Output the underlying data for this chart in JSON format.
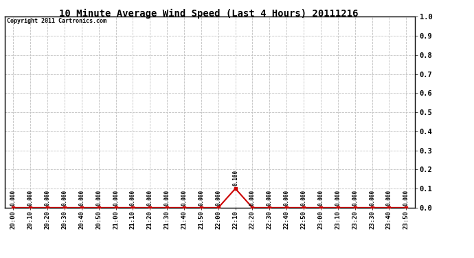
{
  "title": "10 Minute Average Wind Speed (Last 4 Hours) 20111216",
  "copyright": "Copyright 2011 Cartronics.com",
  "x_labels": [
    "20:00",
    "20:10",
    "20:20",
    "20:30",
    "20:40",
    "20:50",
    "21:00",
    "21:10",
    "21:20",
    "21:30",
    "21:40",
    "21:50",
    "22:00",
    "22:10",
    "22:20",
    "22:30",
    "22:40",
    "22:50",
    "23:00",
    "23:10",
    "23:20",
    "23:30",
    "23:40",
    "23:50"
  ],
  "y_values": [
    0.0,
    0.0,
    0.0,
    0.0,
    0.0,
    0.0,
    0.0,
    0.0,
    0.0,
    0.0,
    0.0,
    0.0,
    0.0,
    0.1,
    0.0,
    0.0,
    0.0,
    0.0,
    0.0,
    0.0,
    0.0,
    0.0,
    0.0,
    0.0
  ],
  "y_annotations": [
    "0.000",
    "0.000",
    "0.000",
    "0.000",
    "0.000",
    "0.000",
    "0.000",
    "0.000",
    "0.000",
    "0.000",
    "0.000",
    "0.000",
    "0.000",
    "0.100",
    "0.000",
    "0.000",
    "0.000",
    "0.000",
    "0.000",
    "0.000",
    "0.000",
    "0.000",
    "0.000",
    "0.000"
  ],
  "line_color": "#cc0000",
  "marker_color": "#cc0000",
  "background_color": "#ffffff",
  "plot_bg_color": "#ffffff",
  "grid_color": "#c0c0c0",
  "title_fontsize": 10,
  "copyright_fontsize": 6,
  "annotation_fontsize": 5.5,
  "xlabel_fontsize": 6.5,
  "ylabel_right_fontsize": 7.5,
  "ylim": [
    0.0,
    1.0
  ],
  "yticks": [
    0.0,
    0.1,
    0.2,
    0.3,
    0.4,
    0.5,
    0.6,
    0.7,
    0.8,
    0.9,
    1.0
  ]
}
